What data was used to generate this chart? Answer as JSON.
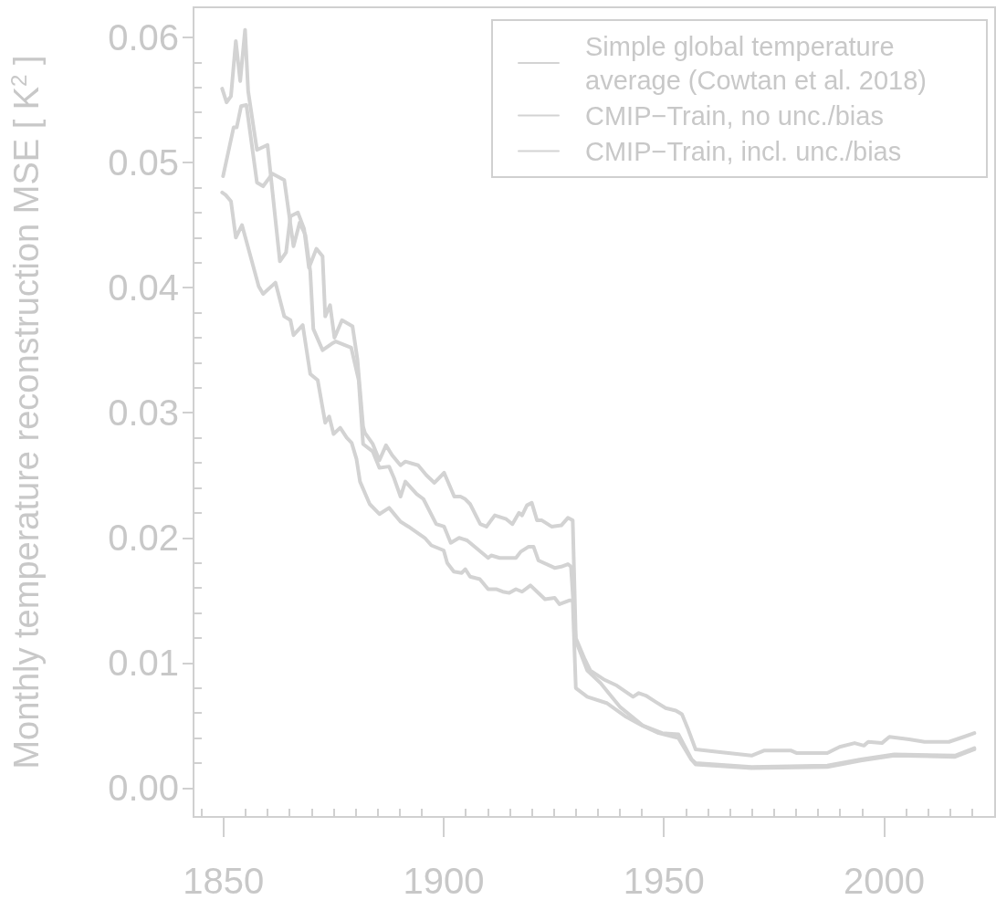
{
  "chart_data": {
    "type": "line",
    "ylabel": "Monthly temperature reconstruction MSE [ K$^{2}$ ]",
    "xlim": [
      1843.2,
      2025.2
    ],
    "ylim": [
      -0.0023,
      0.0624
    ],
    "xticks": [
      {
        "value": 1845,
        "label": null
      },
      1850,
      {
        "value": 1855,
        "label": null
      },
      {
        "value": 1860,
        "label": null
      },
      {
        "value": 1865,
        "label": null
      },
      {
        "value": 1870,
        "label": null
      },
      {
        "value": 1875,
        "label": null
      },
      {
        "value": 1880,
        "label": null
      },
      {
        "value": 1885,
        "label": null
      },
      {
        "value": 1890,
        "label": null
      },
      {
        "value": 1895,
        "label": null
      },
      1900,
      {
        "value": 1905,
        "label": null
      },
      {
        "value": 1910,
        "label": null
      },
      {
        "value": 1915,
        "label": null
      },
      {
        "value": 1920,
        "label": null
      },
      {
        "value": 1925,
        "label": null
      },
      {
        "value": 1930,
        "label": null
      },
      {
        "value": 1935,
        "label": null
      },
      {
        "value": 1940,
        "label": null
      },
      {
        "value": 1945,
        "label": null
      },
      1950,
      {
        "value": 1955,
        "label": null
      },
      {
        "value": 1960,
        "label": null
      },
      {
        "value": 1965,
        "label": null
      },
      {
        "value": 1970,
        "label": null
      },
      {
        "value": 1975,
        "label": null
      },
      {
        "value": 1980,
        "label": null
      },
      {
        "value": 1985,
        "label": null
      },
      {
        "value": 1990,
        "label": null
      },
      {
        "value": 1995,
        "label": null
      },
      2000,
      {
        "value": 2005,
        "label": null
      },
      {
        "value": 2010,
        "label": null
      },
      {
        "value": 2015,
        "label": null
      },
      {
        "value": 2020,
        "label": null
      }
    ],
    "yticks": [
      {
        "value": 0,
        "label": "0.00"
      },
      {
        "value": 0.002,
        "label": null
      },
      {
        "value": 0.004,
        "label": null
      },
      {
        "value": 0.006,
        "label": null
      },
      {
        "value": 0.008,
        "label": null
      },
      {
        "value": 0.01,
        "label": "0.01"
      },
      {
        "value": 0.012,
        "label": null
      },
      {
        "value": 0.014,
        "label": null
      },
      {
        "value": 0.016,
        "label": null
      },
      {
        "value": 0.018,
        "label": null
      },
      {
        "value": 0.02,
        "label": "0.02"
      },
      {
        "value": 0.022,
        "label": null
      },
      {
        "value": 0.024,
        "label": null
      },
      {
        "value": 0.026,
        "label": null
      },
      {
        "value": 0.028,
        "label": null
      },
      {
        "value": 0.03,
        "label": "0.03"
      },
      {
        "value": 0.032,
        "label": null
      },
      {
        "value": 0.034,
        "label": null
      },
      {
        "value": 0.036,
        "label": null
      },
      {
        "value": 0.038,
        "label": null
      },
      {
        "value": 0.04,
        "label": "0.04"
      },
      {
        "value": 0.042,
        "label": null
      },
      {
        "value": 0.044,
        "label": null
      },
      {
        "value": 0.046,
        "label": null
      },
      {
        "value": 0.048,
        "label": null
      },
      {
        "value": 0.05,
        "label": "0.05"
      },
      {
        "value": 0.052,
        "label": null
      },
      {
        "value": 0.054,
        "label": null
      },
      {
        "value": 0.056,
        "label": null
      },
      {
        "value": 0.058,
        "label": null
      },
      {
        "value": 0.06,
        "label": "0.06"
      }
    ],
    "grid": false,
    "legend": "top right",
    "marker": "none",
    "line_style": "solid",
    "series": [
      {
        "name": "Simple global temperature average (Cowtan et al. 2018)",
        "color": "#d3d3d3",
        "x": [
          1849.7,
          1850.7,
          1851.7,
          1852.8,
          1853.8,
          1854.9,
          1855.6,
          1857.6,
          1860,
          1862.8,
          1864.2,
          1865.2,
          1866.9,
          1868.3,
          1869.4,
          1871.1,
          1872.5,
          1873.1,
          1874.2,
          1875.2,
          1876.9,
          1879.3,
          1880.4,
          1881.7,
          1882.1,
          1883.9,
          1885.4,
          1886.9,
          1888.3,
          1890.2,
          1891.3,
          1894.2,
          1896.1,
          1897.9,
          1900.1,
          1902.4,
          1903.8,
          1904.9,
          1906,
          1908.3,
          1909.7,
          1911.6,
          1914.2,
          1915.6,
          1917.1,
          1917.8,
          1918.9,
          1920,
          1921.2,
          1922.3,
          1924.5,
          1926.7,
          1928.2,
          1929.3,
          1930,
          1931.9,
          1933.3,
          1936.3,
          1939.3,
          1943,
          1944.3,
          1945.9,
          1948.1,
          1950.4,
          1952.7,
          1954.1,
          1955.4,
          1957.2,
          1962.3,
          1969.9,
          1972.7,
          1978.9,
          1980.2,
          1987.1,
          1989.9,
          1993.3,
          1995.4,
          1996.4,
          1999.5,
          2001.2,
          2005.7,
          2009.2,
          2014.7,
          2018.1,
          2020.5
        ],
        "values": [
          0.0559,
          0.0548,
          0.0553,
          0.0597,
          0.0565,
          0.0606,
          0.0557,
          0.051,
          0.0514,
          0.0421,
          0.0428,
          0.0457,
          0.046,
          0.0447,
          0.0416,
          0.0431,
          0.0425,
          0.0377,
          0.0386,
          0.036,
          0.0374,
          0.0369,
          0.0343,
          0.0289,
          0.0284,
          0.0275,
          0.0262,
          0.0274,
          0.0266,
          0.0258,
          0.0261,
          0.0258,
          0.025,
          0.0244,
          0.0252,
          0.0233,
          0.0233,
          0.0231,
          0.0227,
          0.0211,
          0.0209,
          0.0218,
          0.0215,
          0.0211,
          0.022,
          0.0218,
          0.0226,
          0.0228,
          0.0214,
          0.0214,
          0.0209,
          0.021,
          0.0216,
          0.0214,
          0.012,
          0.0104,
          0.0094,
          0.0087,
          0.0082,
          0.0073,
          0.0076,
          0.0074,
          0.0069,
          0.0064,
          0.0062,
          0.0059,
          0.0048,
          0.0031,
          0.0029,
          0.0026,
          0.003,
          0.003,
          0.0028,
          0.0028,
          0.0033,
          0.0036,
          0.0034,
          0.0037,
          0.0036,
          0.0041,
          0.0039,
          0.0037,
          0.0037,
          0.0041,
          0.0044
        ]
      },
      {
        "name": "CMIP−Train, no unc./bias",
        "color": "#d3d3d3",
        "x": [
          1849.9,
          1852.3,
          1853,
          1854,
          1855.2,
          1857.6,
          1859,
          1861.1,
          1863.8,
          1865.9,
          1867.3,
          1868.6,
          1869.7,
          1870.4,
          1872.5,
          1874.5,
          1875.5,
          1879,
          1880.7,
          1881.7,
          1883.9,
          1885.4,
          1887.6,
          1888.7,
          1890.2,
          1891.3,
          1893.9,
          1895.4,
          1898.3,
          1900.1,
          1901.6,
          1903.5,
          1905.3,
          1910.1,
          1910.8,
          1912.7,
          1916.4,
          1917.5,
          1919.3,
          1920.4,
          1921.5,
          1925.2,
          1926.7,
          1928.2,
          1928.9,
          1930,
          1932.6,
          1935.6,
          1940,
          1945.2,
          1949.6,
          1953.3,
          1956.3,
          1957.2,
          1969.9,
          1987.1,
          1994.7,
          2002.3,
          2016.1,
          2020.5
        ],
        "values": [
          0.0489,
          0.0528,
          0.0528,
          0.0545,
          0.0546,
          0.0484,
          0.0481,
          0.0491,
          0.0486,
          0.0433,
          0.0452,
          0.0442,
          0.0413,
          0.0367,
          0.035,
          0.0355,
          0.0357,
          0.0352,
          0.0326,
          0.0275,
          0.0269,
          0.0256,
          0.0257,
          0.0248,
          0.0233,
          0.0245,
          0.0235,
          0.0231,
          0.0211,
          0.0209,
          0.0196,
          0.02,
          0.0198,
          0.0184,
          0.0186,
          0.0184,
          0.0184,
          0.0189,
          0.0193,
          0.0193,
          0.0182,
          0.0176,
          0.0177,
          0.0179,
          0.0177,
          0.0118,
          0.0094,
          0.0084,
          0.0065,
          0.005,
          0.0044,
          0.0043,
          0.0023,
          0.002,
          0.0017,
          0.0018,
          0.0023,
          0.0027,
          0.0026,
          0.0032
        ]
      },
      {
        "name": "CMIP−Train, incl. unc./bias",
        "color": "#d3d3d3",
        "x": [
          1849.7,
          1850.5,
          1851.7,
          1852.8,
          1854.2,
          1858,
          1859,
          1861.8,
          1863.8,
          1865.2,
          1865.9,
          1868,
          1869.7,
          1871.4,
          1873.1,
          1874,
          1875,
          1876.5,
          1878,
          1879.1,
          1880.2,
          1881,
          1883.2,
          1885.4,
          1887.6,
          1890.2,
          1892,
          1895.7,
          1897.2,
          1900,
          1900.8,
          1902.3,
          1904.1,
          1904.9,
          1906,
          1908.2,
          1910.1,
          1911.9,
          1913.4,
          1914.9,
          1916.4,
          1917.8,
          1919.7,
          1921.2,
          1923,
          1925.2,
          1926.3,
          1928.5,
          1929.3,
          1930,
          1932.6,
          1937,
          1941.4,
          1945.1,
          1948.8,
          1953.3,
          1956.2,
          1957.2,
          1969.9,
          1987.1,
          1994.7,
          2002.3,
          2016.1,
          2020.5
        ],
        "values": [
          0.0476,
          0.0474,
          0.0469,
          0.044,
          0.045,
          0.0401,
          0.0395,
          0.0404,
          0.0377,
          0.0374,
          0.0362,
          0.037,
          0.0331,
          0.0326,
          0.0292,
          0.0297,
          0.0283,
          0.0288,
          0.028,
          0.0276,
          0.0263,
          0.0245,
          0.0227,
          0.0219,
          0.0224,
          0.0213,
          0.0209,
          0.02,
          0.0194,
          0.019,
          0.018,
          0.0173,
          0.0172,
          0.0175,
          0.0169,
          0.0167,
          0.0159,
          0.0159,
          0.0157,
          0.0156,
          0.0159,
          0.0157,
          0.0162,
          0.0157,
          0.0151,
          0.0152,
          0.0147,
          0.015,
          0.015,
          0.008,
          0.0073,
          0.0068,
          0.0057,
          0.005,
          0.0044,
          0.004,
          0.0023,
          0.0019,
          0.0016,
          0.0017,
          0.0022,
          0.0026,
          0.0025,
          0.0031
        ]
      }
    ]
  }
}
